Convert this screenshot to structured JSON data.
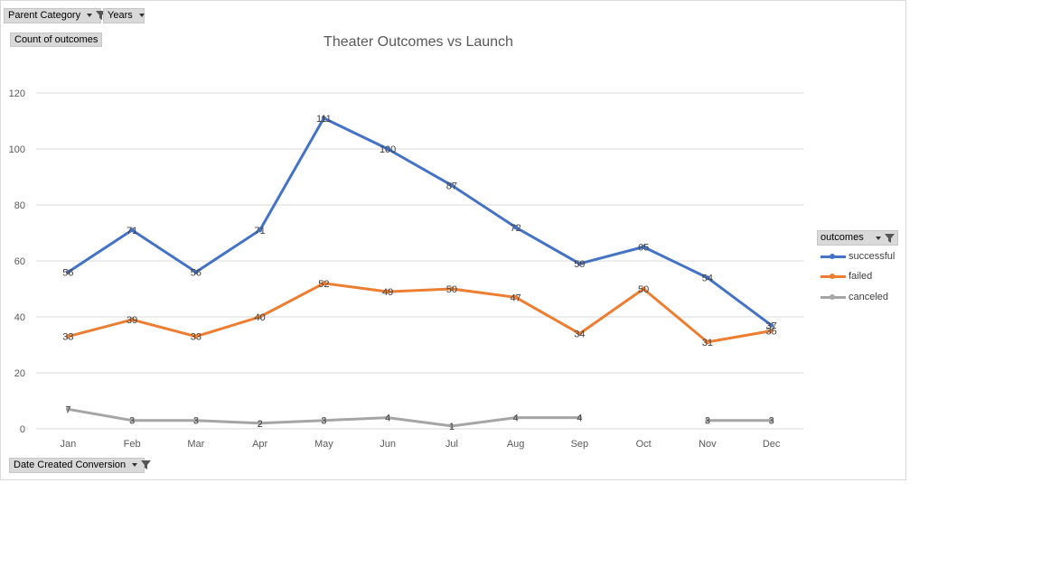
{
  "filters": {
    "parent_category": "Parent Category",
    "years": "Years",
    "count_of_outcomes": "Count of outcomes",
    "date_created": "Date Created Conversion"
  },
  "legend": {
    "title": "outcomes"
  },
  "colors": {
    "successful": "#4472c4",
    "failed": "#ed7d31",
    "canceled": "#a5a5a5",
    "gridline": "#d9d9d9",
    "axis_text": "#595959"
  },
  "chart_data": {
    "type": "line",
    "title": "Theater Outcomes vs Launch",
    "xlabel": "",
    "ylabel": "",
    "ylim": [
      0,
      120
    ],
    "yticks": [
      0,
      20,
      40,
      60,
      80,
      100,
      120
    ],
    "grid": true,
    "legend_position": "right",
    "categories": [
      "Jan",
      "Feb",
      "Mar",
      "Apr",
      "May",
      "Jun",
      "Jul",
      "Aug",
      "Sep",
      "Oct",
      "Nov",
      "Dec"
    ],
    "series": [
      {
        "name": "successful",
        "values": [
          56,
          71,
          56,
          71,
          111,
          100,
          87,
          72,
          59,
          65,
          54,
          37
        ]
      },
      {
        "name": "failed",
        "values": [
          33,
          39,
          33,
          40,
          52,
          49,
          50,
          47,
          34,
          50,
          31,
          35
        ]
      },
      {
        "name": "canceled",
        "values": [
          7,
          3,
          3,
          2,
          3,
          4,
          1,
          4,
          4,
          null,
          3,
          3
        ]
      }
    ]
  }
}
